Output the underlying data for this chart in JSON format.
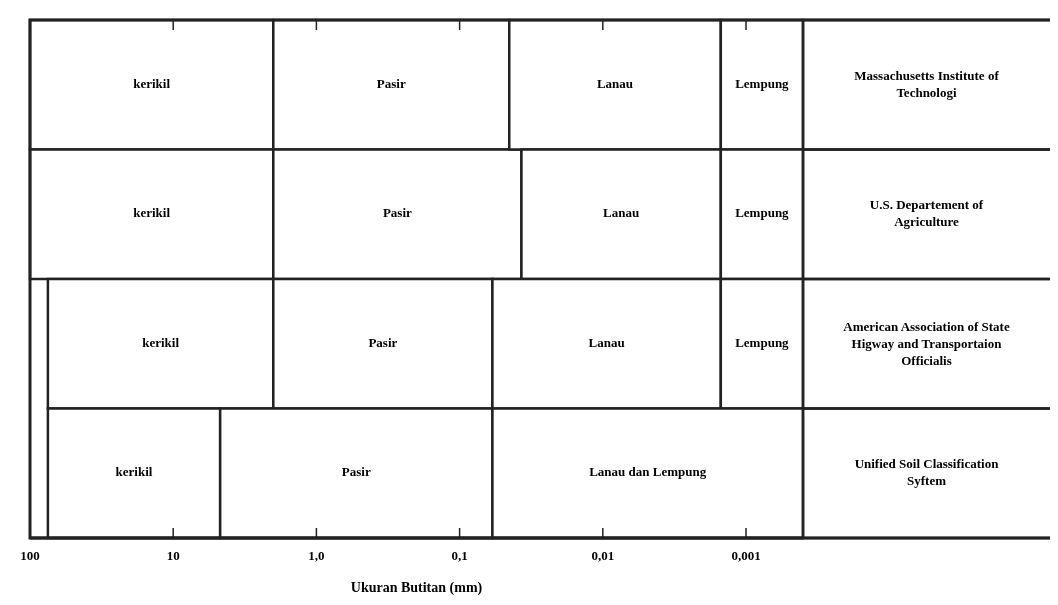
{
  "chart_data": {
    "type": "bar",
    "orientation": "horizontal",
    "log": "x",
    "xlabel": "Ukuran Butitan (mm)",
    "categories": [
      "Massachusetts Institute of Technologi",
      "U.S. Departement of Agriculture",
      "American Association of State Higway and Transportaion Officialis",
      "Unified Soil Classification Syftem"
    ],
    "xlim": [
      100,
      0.0004
    ],
    "xticks": [
      {
        "value": 100,
        "label": "100"
      },
      {
        "value": 10,
        "label": "10"
      },
      {
        "value": 1,
        "label": "1,0"
      },
      {
        "value": 0.1,
        "label": "0,1"
      },
      {
        "value": 0.01,
        "label": "0,01"
      },
      {
        "value": 0.001,
        "label": "0,001"
      }
    ],
    "grid": false,
    "series": [
      {
        "name": "kerikil",
        "color": "#ffffff",
        "base": [
          2,
          2,
          2,
          4.7
        ],
        "values": [
          98,
          98,
          73,
          70.3
        ]
      },
      {
        "name": "Pasir",
        "color": "#ffffff",
        "base": [
          0.045,
          0.037,
          0.059,
          0.059
        ],
        "values": [
          1.955,
          1.963,
          1.941,
          4.641
        ]
      },
      {
        "name": "Lanau",
        "color": "#ffffff",
        "base": [
          0.0015,
          0.0015,
          0.0015,
          null
        ],
        "values": [
          0.0435,
          0.0355,
          0.0575,
          null
        ]
      },
      {
        "name": "Lempung",
        "color": "#ffffff",
        "base": [
          0.0004,
          0.0004,
          0.0004,
          null
        ],
        "values": [
          0.0011,
          0.0011,
          0.0011,
          null
        ]
      },
      {
        "name": "Lanau dan Lempung",
        "color": "#ffffff",
        "base": [
          null,
          null,
          null,
          0.0004
        ],
        "values": [
          null,
          null,
          null,
          0.0586
        ]
      }
    ]
  }
}
